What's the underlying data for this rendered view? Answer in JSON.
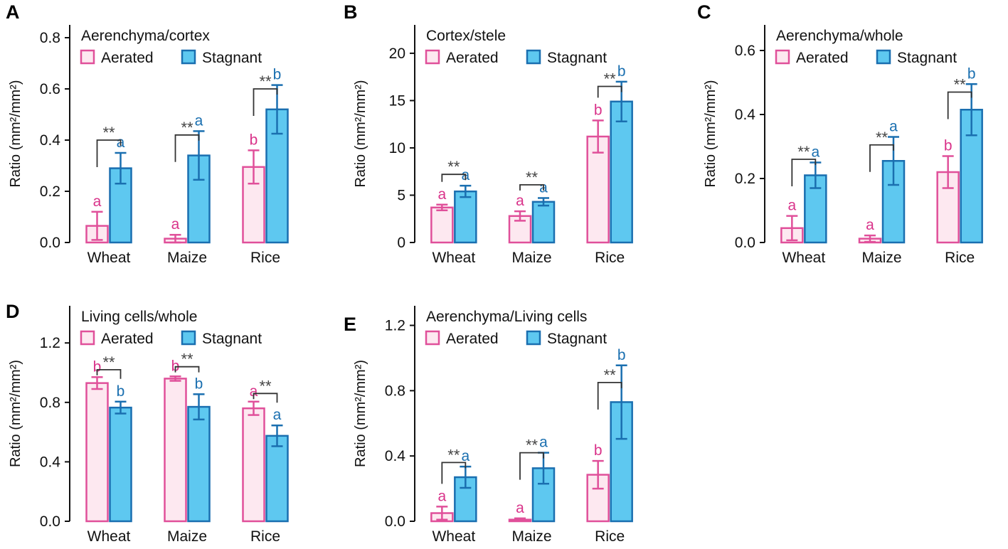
{
  "colors": {
    "aerated_fill": "#fde8f0",
    "aerated_stroke": "#e0509a",
    "stagnant_fill": "#5ec8f0",
    "stagnant_stroke": "#1a6fb0",
    "aerated_text": "#d9338a",
    "stagnant_text": "#1a6fb0",
    "axis": "#111111",
    "bracket": "#333333"
  },
  "chart_data": [
    {
      "panel": "A",
      "type": "bar",
      "title": "Aerenchyma/cortex",
      "ylabel": "Ratio (mm²/mm²)",
      "ylim": [
        0,
        0.85
      ],
      "yticks": [
        "0.0",
        "0.2",
        "0.4",
        "0.6",
        "0.8"
      ],
      "categories": [
        "Wheat",
        "Maize",
        "Rice"
      ],
      "legend": [
        "Aerated",
        "Stagnant"
      ],
      "series": [
        {
          "name": "Aerated",
          "values": [
            0.065,
            0.015,
            0.295
          ],
          "errors": [
            0.055,
            0.015,
            0.065
          ],
          "letters": [
            "a",
            "a",
            "b"
          ]
        },
        {
          "name": "Stagnant",
          "values": [
            0.29,
            0.34,
            0.52
          ],
          "errors": [
            0.06,
            0.095,
            0.095
          ],
          "letters": [
            "a",
            "a",
            "b"
          ]
        }
      ],
      "significance": [
        "**",
        "**",
        "**"
      ],
      "sig_y": [
        0.4,
        0.42,
        0.6
      ]
    },
    {
      "panel": "B",
      "type": "bar",
      "title": "Cortex/stele",
      "ylabel": "Ratio (mm²/mm²)",
      "ylim": [
        0,
        23
      ],
      "yticks": [
        "0",
        "5",
        "10",
        "15",
        "20"
      ],
      "categories": [
        "Wheat",
        "Maize",
        "Rice"
      ],
      "legend": [
        "Aerated",
        "Stagnant"
      ],
      "series": [
        {
          "name": "Aerated",
          "values": [
            3.7,
            2.8,
            11.2
          ],
          "errors": [
            0.3,
            0.5,
            1.7
          ],
          "letters": [
            "a",
            "a",
            "b"
          ]
        },
        {
          "name": "Stagnant",
          "values": [
            5.4,
            4.3,
            14.9
          ],
          "errors": [
            0.6,
            0.4,
            2.1
          ],
          "letters": [
            "a",
            "a",
            "b"
          ]
        }
      ],
      "significance": [
        "**",
        "**",
        "**"
      ],
      "sig_y": [
        7.2,
        6.1,
        16.5
      ]
    },
    {
      "panel": "C",
      "type": "bar",
      "title": "Aerenchyma/whole",
      "ylabel": "Ratio (mm²/mm²)",
      "ylim": [
        0,
        0.68
      ],
      "yticks": [
        "0.0",
        "0.2",
        "0.4",
        "0.6"
      ],
      "categories": [
        "Wheat",
        "Maize",
        "Rice"
      ],
      "legend": [
        "Aerated",
        "Stagnant"
      ],
      "series": [
        {
          "name": "Aerated",
          "values": [
            0.045,
            0.012,
            0.22
          ],
          "errors": [
            0.038,
            0.01,
            0.05
          ],
          "letters": [
            "a",
            "a",
            "b"
          ]
        },
        {
          "name": "Stagnant",
          "values": [
            0.21,
            0.255,
            0.415
          ],
          "errors": [
            0.04,
            0.075,
            0.08
          ],
          "letters": [
            "a",
            "a",
            "b"
          ]
        }
      ],
      "significance": [
        "**",
        "**",
        "**"
      ],
      "sig_y": [
        0.26,
        0.305,
        0.47
      ]
    },
    {
      "panel": "D",
      "type": "bar",
      "title": "Living cells/whole",
      "ylabel": "Ratio (mm²/mm²)",
      "ylim": [
        0,
        1.45
      ],
      "yticks": [
        "0.0",
        "0.4",
        "0.8",
        "1.2"
      ],
      "categories": [
        "Wheat",
        "Maize",
        "Rice"
      ],
      "legend": [
        "Aerated",
        "Stagnant"
      ],
      "series": [
        {
          "name": "Aerated",
          "values": [
            0.93,
            0.96,
            0.76
          ],
          "errors": [
            0.04,
            0.015,
            0.045
          ],
          "letters": [
            "b",
            "b",
            "a"
          ]
        },
        {
          "name": "Stagnant",
          "values": [
            0.765,
            0.77,
            0.575
          ],
          "errors": [
            0.04,
            0.085,
            0.07
          ],
          "letters": [
            "b",
            "b",
            "a"
          ]
        }
      ],
      "significance": [
        "**",
        "**",
        "**"
      ],
      "sig_y": [
        1.02,
        1.04,
        0.86
      ]
    },
    {
      "panel": "E",
      "type": "bar",
      "title": "Aerenchyma/Living cells",
      "ylabel": "Ratio (mm²/mm²)",
      "ylim": [
        0,
        1.32
      ],
      "yticks": [
        "0.0",
        "0.4",
        "0.8",
        "1.2"
      ],
      "categories": [
        "Wheat",
        "Maize",
        "Rice"
      ],
      "legend": [
        "Aerated",
        "Stagnant"
      ],
      "series": [
        {
          "name": "Aerated",
          "values": [
            0.05,
            0.01,
            0.285
          ],
          "errors": [
            0.04,
            0.008,
            0.085
          ],
          "letters": [
            "a",
            "a",
            "b"
          ]
        },
        {
          "name": "Stagnant",
          "values": [
            0.27,
            0.325,
            0.73
          ],
          "errors": [
            0.065,
            0.095,
            0.225
          ],
          "letters": [
            "a",
            "a",
            "b"
          ]
        }
      ],
      "significance": [
        "**",
        "**",
        "**"
      ],
      "sig_y": [
        0.36,
        0.42,
        0.85
      ]
    }
  ]
}
